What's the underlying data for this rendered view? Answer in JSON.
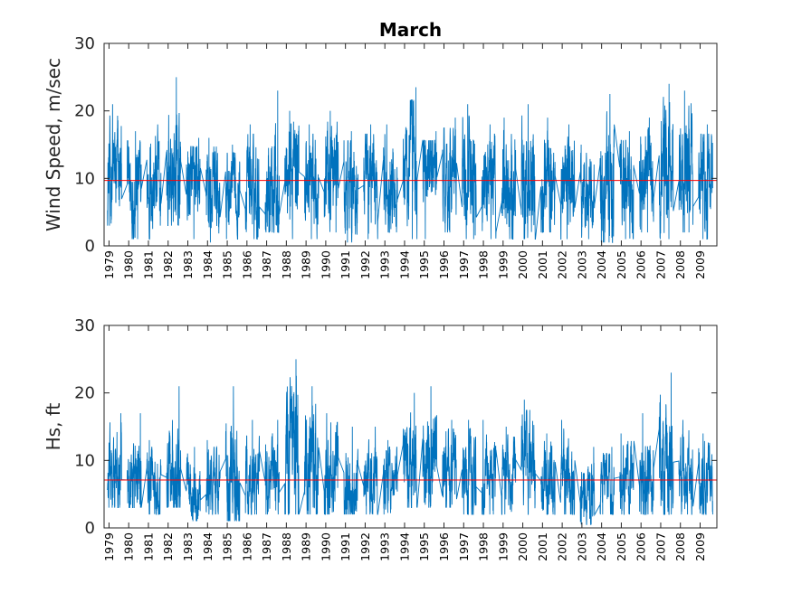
{
  "chart_data": [
    {
      "type": "line",
      "title": "March",
      "xlabel": "",
      "ylabel": "Wind Speed, m/sec",
      "xlim": [
        1978.75,
        2009.85
      ],
      "ylim": [
        0,
        30
      ],
      "yticks": [
        0,
        10,
        20,
        30
      ],
      "x_tick_labels": [
        "1979",
        "1980",
        "1981",
        "1982",
        "1983",
        "1984",
        "1985",
        "1986",
        "1987",
        "1988",
        "1989",
        "1990",
        "1991",
        "1992",
        "1993",
        "1994",
        "1995",
        "1996",
        "1997",
        "1998",
        "1999",
        "2000",
        "2001",
        "2002",
        "2003",
        "2004",
        "2005",
        "2006",
        "2007",
        "2008",
        "2009"
      ],
      "mean_line": 9.7,
      "series_color": "#0072bd",
      "mean_color": "#ff0000",
      "grid": false,
      "yearly_stats": {
        "years": [
          1979,
          1980,
          1981,
          1982,
          1983,
          1984,
          1985,
          1986,
          1987,
          1988,
          1989,
          1990,
          1991,
          1992,
          1993,
          1994,
          1995,
          1996,
          1997,
          1998,
          1999,
          2000,
          2001,
          2002,
          2003,
          2004,
          2005,
          2006,
          2007,
          2008,
          2009
        ],
        "max": [
          21,
          17,
          18,
          25,
          16,
          16,
          15,
          18,
          23,
          20,
          18,
          20,
          17,
          18,
          18,
          23.5,
          17,
          19,
          21,
          18,
          19,
          21,
          19,
          18,
          15,
          22.5,
          17,
          19,
          24,
          23,
          18
        ],
        "min": [
          3,
          1,
          1,
          3,
          1,
          0.5,
          1,
          1,
          2,
          1,
          1,
          2,
          0.5,
          1,
          2,
          1,
          1,
          2,
          1,
          1,
          1,
          1,
          2,
          1,
          1,
          0.5,
          1,
          2,
          1,
          2,
          1
        ],
        "mean": [
          10,
          9,
          9,
          10,
          9,
          8,
          8,
          9,
          10,
          11,
          10,
          11,
          8,
          10,
          10,
          12,
          12,
          11,
          10,
          9,
          10,
          10,
          9,
          9,
          8,
          9,
          10,
          10,
          11,
          11,
          10
        ]
      }
    },
    {
      "type": "line",
      "title": "",
      "xlabel": "",
      "ylabel": "Hs, ft",
      "xlim": [
        1978.75,
        2009.85
      ],
      "ylim": [
        0,
        30
      ],
      "yticks": [
        0,
        10,
        20,
        30
      ],
      "x_tick_labels": [
        "1979",
        "1980",
        "1981",
        "1982",
        "1983",
        "1984",
        "1985",
        "1986",
        "1987",
        "1988",
        "1989",
        "1990",
        "1991",
        "1992",
        "1993",
        "1994",
        "1995",
        "1996",
        "1997",
        "1998",
        "1999",
        "2000",
        "2001",
        "2002",
        "2003",
        "2004",
        "2005",
        "2006",
        "2007",
        "2008",
        "2009"
      ],
      "mean_line": 7.1,
      "series_color": "#0072bd",
      "mean_color": "#ff0000",
      "grid": false,
      "yearly_stats": {
        "years": [
          1979,
          1980,
          1981,
          1982,
          1983,
          1984,
          1985,
          1986,
          1987,
          1988,
          1989,
          1990,
          1991,
          1992,
          1993,
          1994,
          1995,
          1996,
          1997,
          1998,
          1999,
          2000,
          2001,
          2002,
          2003,
          2004,
          2005,
          2006,
          2007,
          2008,
          2009
        ],
        "max": [
          17,
          17,
          13,
          21,
          12,
          13,
          21,
          16,
          16,
          25,
          21,
          17,
          15,
          15,
          13,
          20,
          21,
          16,
          16,
          16,
          15,
          19,
          14,
          16,
          12,
          12,
          14,
          17,
          23,
          16,
          14
        ],
        "min": [
          3,
          3,
          2,
          3,
          1,
          2,
          1,
          2,
          2,
          2,
          2,
          2,
          2,
          2,
          2,
          3,
          3,
          3,
          2,
          2,
          2,
          2,
          2,
          2,
          0.5,
          2,
          2,
          2,
          2,
          2,
          2
        ],
        "mean": [
          7,
          7,
          7,
          8,
          6,
          6,
          6,
          7,
          7,
          9,
          8,
          7,
          6,
          7,
          7,
          8,
          9,
          8,
          7,
          7,
          7,
          8,
          7,
          7,
          5,
          6,
          7,
          7,
          9,
          8,
          7
        ]
      }
    }
  ]
}
